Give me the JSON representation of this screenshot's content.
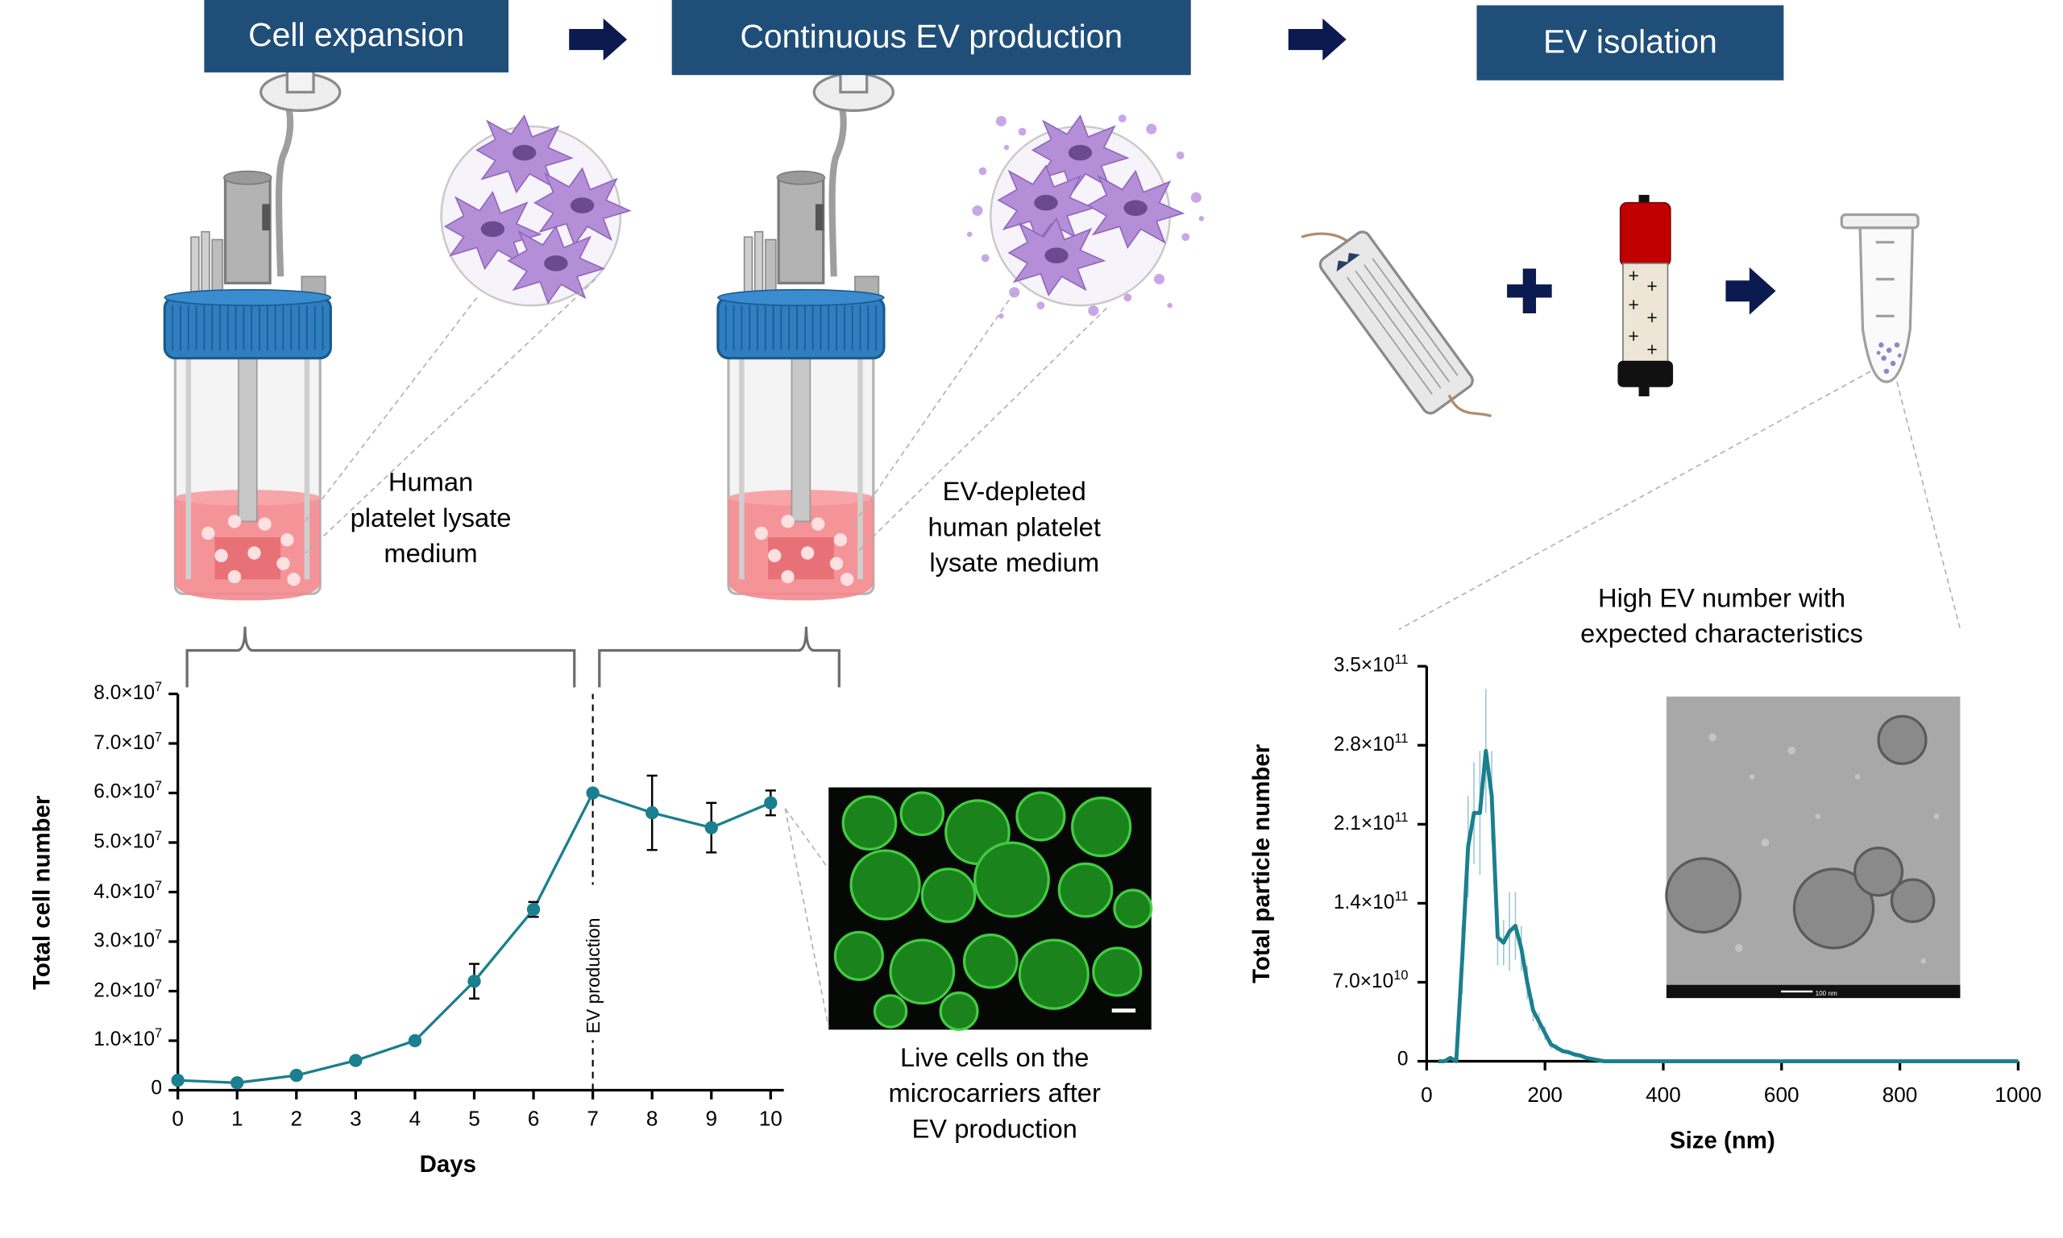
{
  "steps": {
    "cell_expansion": "Cell expansion",
    "continuous_production": "Continuous EV production",
    "isolation": "EV isolation"
  },
  "captions": {
    "medium1": "Human\nplatelet lysate\nmedium",
    "medium2": "EV-depleted\nhuman platelet\nlysate medium",
    "live_cells": "Live cells on the\nmicrocarriers after\nEV production",
    "high_ev": "High EV number with\nexpected characteristics",
    "ev_production": "EV production",
    "tem_scalebar": "100 nm"
  },
  "colors": {
    "banner": "#1f4e79",
    "arrow": "#0b1a4f",
    "series": "#1a7f8e",
    "cap": "#2f7ec0",
    "medium": "#f48a8e",
    "cell": "#b08ad4"
  },
  "chart_data": [
    {
      "type": "line",
      "xlabel": "Days",
      "ylabel": "Total cell number",
      "x": [
        0,
        1,
        2,
        3,
        4,
        5,
        6,
        7,
        8,
        9,
        10
      ],
      "y": [
        2000000.0,
        1500000.0,
        3000000.0,
        6000000.0,
        10000000.0,
        22000000.0,
        36500000.0,
        60000000.0,
        56000000.0,
        53000000.0,
        58000000.0
      ],
      "error": [
        0,
        0,
        0,
        0,
        0,
        3500000.0,
        1500000.0,
        0,
        7500000.0,
        5000000.0,
        2500000.0
      ],
      "xlim": [
        0,
        10
      ],
      "ylim": [
        0,
        80000000.0
      ],
      "x_ticks": [
        "0",
        "1",
        "2",
        "3",
        "4",
        "5",
        "6",
        "7",
        "8",
        "9",
        "10"
      ],
      "y_ticks": [
        {
          "m": "0",
          "e": ""
        },
        {
          "m": "1.0×10",
          "e": "7"
        },
        {
          "m": "2.0×10",
          "e": "7"
        },
        {
          "m": "3.0×10",
          "e": "7"
        },
        {
          "m": "4.0×10",
          "e": "7"
        },
        {
          "m": "5.0×10",
          "e": "7"
        },
        {
          "m": "6.0×10",
          "e": "7"
        },
        {
          "m": "7.0×10",
          "e": "7"
        },
        {
          "m": "8.0×10",
          "e": "7"
        }
      ],
      "annotation": {
        "x": 7,
        "text": "EV production"
      }
    },
    {
      "type": "line",
      "xlabel": "Size (nm)",
      "ylabel": "Total particle number",
      "x": [
        20,
        30,
        40,
        50,
        60,
        70,
        80,
        90,
        100,
        110,
        120,
        130,
        140,
        150,
        160,
        170,
        180,
        190,
        200,
        210,
        220,
        230,
        240,
        250,
        260,
        270,
        280,
        290,
        300,
        350,
        400,
        500,
        600,
        700,
        800,
        900,
        1000
      ],
      "y": [
        0,
        0,
        3000000000.0,
        0,
        90000000000.0,
        190000000000.0,
        220000000000.0,
        220000000000.0,
        275000000000.0,
        235000000000.0,
        110000000000.0,
        105000000000.0,
        115000000000.0,
        120000000000.0,
        100000000000.0,
        70000000000.0,
        45000000000.0,
        35000000000.0,
        25000000000.0,
        15000000000.0,
        12000000000.0,
        9000000000.0,
        8000000000.0,
        6000000000.0,
        5000000000.0,
        3000000000.0,
        2000000000.0,
        1000000000.0,
        0,
        0,
        0,
        0,
        0,
        0,
        0,
        0,
        0
      ],
      "error": [
        0,
        0,
        0,
        0,
        30000000000.0,
        45000000000.0,
        45000000000.0,
        55000000000.0,
        55000000000.0,
        40000000000.0,
        25000000000.0,
        20000000000.0,
        35000000000.0,
        30000000000.0,
        20000000000.0,
        15000000000.0,
        10000000000.0,
        8000000000.0,
        6000000000.0,
        4000000000.0,
        3000000000.0,
        2000000000.0,
        2000000000.0,
        1000000000.0,
        1000000000.0,
        1000000000.0,
        0,
        0,
        0,
        0,
        0,
        0,
        0,
        0,
        0,
        0,
        0
      ],
      "xlim": [
        0,
        1000
      ],
      "ylim": [
        0,
        350000000000.0
      ],
      "x_ticks": [
        "0",
        "200",
        "400",
        "600",
        "800",
        "1000"
      ],
      "y_ticks": [
        {
          "m": "0",
          "e": ""
        },
        {
          "m": "7.0×10",
          "e": "10"
        },
        {
          "m": "1.4×10",
          "e": "11"
        },
        {
          "m": "2.1×10",
          "e": "11"
        },
        {
          "m": "2.8×10",
          "e": "11"
        },
        {
          "m": "3.5×10",
          "e": "11"
        }
      ]
    }
  ]
}
